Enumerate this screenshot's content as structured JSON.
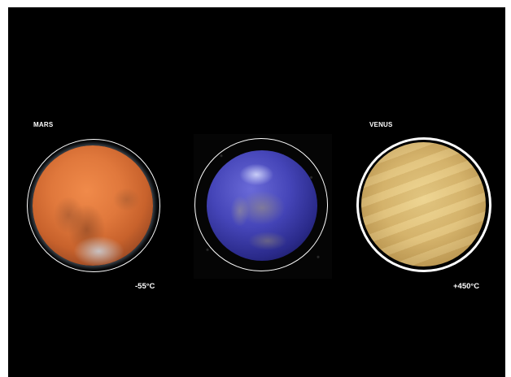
{
  "planets": [
    {
      "name": "MARS",
      "temperature": "-55°C",
      "color": "#e0783c"
    },
    {
      "name": "",
      "temperature": "",
      "color": "#4545b8"
    },
    {
      "name": "VENUS",
      "temperature": "+450°C",
      "color": "#d8b870"
    }
  ],
  "colors": {
    "background": "#000000",
    "frame": "#ffffff",
    "text": "#ffffff"
  }
}
